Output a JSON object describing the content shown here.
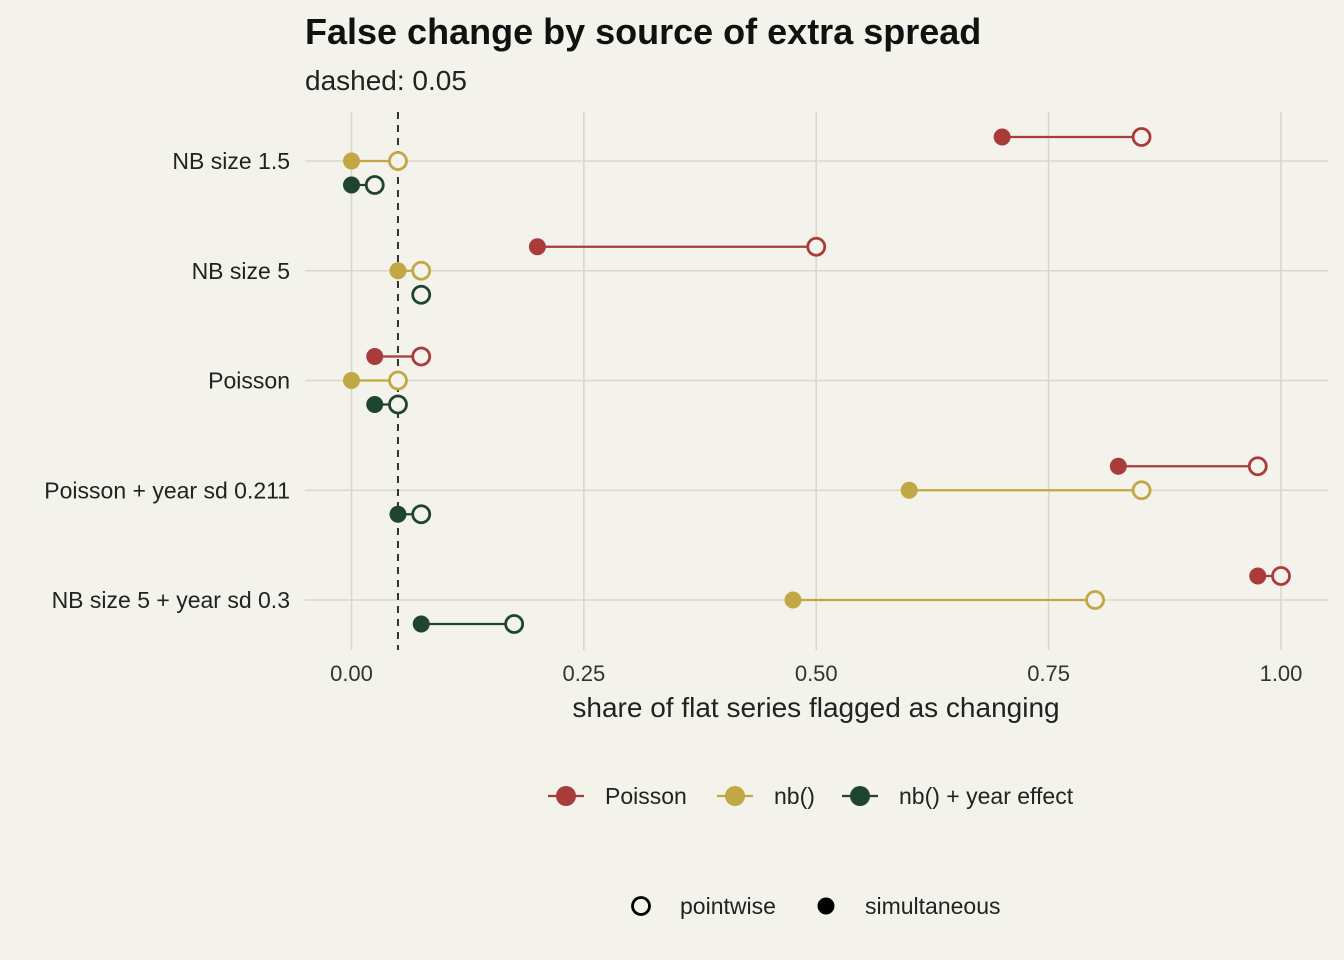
{
  "chart_data": {
    "type": "dumbbell",
    "title": "False change by source of extra spread",
    "subtitle": "dashed: 0.05",
    "xlabel": "share of flat series flagged as changing",
    "xlim": [
      -0.015,
      1.04
    ],
    "xticks": [
      0,
      0.25,
      0.5,
      0.75,
      1
    ],
    "xtick_labels": [
      "0.00",
      "0.25",
      "0.50",
      "0.75",
      "1.00"
    ],
    "reference_line": 0.05,
    "grid": true,
    "categories": [
      "NB size 1.5",
      "NB size 5",
      "Poisson",
      "Poisson + year sd 0.211",
      "NB size 5 + year sd 0.3"
    ],
    "series": [
      {
        "name": "Poisson",
        "color": "#a93b3b",
        "simultaneous": [
          0.7,
          0.2,
          0.025,
          0.825,
          0.975
        ],
        "pointwise": [
          0.85,
          0.5,
          0.075,
          0.975,
          1.0
        ]
      },
      {
        "name": "nb()",
        "color": "#c2a745",
        "simultaneous": [
          0.0,
          0.05,
          0.0,
          0.6,
          0.475
        ],
        "pointwise": [
          0.05,
          0.075,
          0.05,
          0.85,
          0.8
        ]
      },
      {
        "name": "nb() + year effect",
        "color": "#1f4530",
        "simultaneous": [
          0.0,
          0.075,
          0.025,
          0.05,
          0.075
        ],
        "pointwise": [
          0.025,
          0.075,
          0.05,
          0.075,
          0.175
        ]
      }
    ],
    "shape_legend": [
      {
        "key": "pointwise",
        "label": "pointwise"
      },
      {
        "key": "simultaneous",
        "label": "simultaneous"
      }
    ]
  }
}
